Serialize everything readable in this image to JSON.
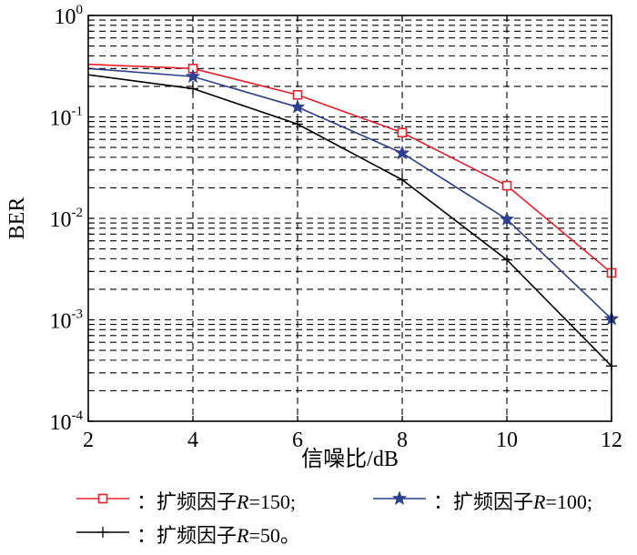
{
  "chart_data": {
    "type": "line",
    "title": "",
    "xlabel": "信噪比/dB",
    "ylabel": "BER",
    "x": [
      2,
      4,
      6,
      8,
      10,
      12
    ],
    "xlim": [
      2,
      12
    ],
    "ylim": [
      0.0001,
      1
    ],
    "yscale": "log",
    "grid": true,
    "xticks": [
      2,
      4,
      6,
      8,
      10,
      12
    ],
    "yticks": [
      {
        "base": "10",
        "exp": "0",
        "value": 1
      },
      {
        "base": "10",
        "exp": "-1",
        "value": 0.1
      },
      {
        "base": "10",
        "exp": "-2",
        "value": 0.01
      },
      {
        "base": "10",
        "exp": "-3",
        "value": 0.001
      },
      {
        "base": "10",
        "exp": "-4",
        "value": 0.0001
      }
    ],
    "legend_position": "bottom",
    "series": [
      {
        "prefix": "：扩频因子",
        "var": "R",
        "suffix": "=150;",
        "marker": "square",
        "color": "#e8202a",
        "values": [
          0.33,
          0.3,
          0.165,
          0.07,
          0.021,
          0.0029
        ],
        "marker_x": [
          4,
          6,
          8,
          10,
          12
        ]
      },
      {
        "prefix": "：扩频因子",
        "var": "R",
        "suffix": "=100;",
        "marker": "star",
        "color": "#2e3f8f",
        "values": [
          0.3,
          0.25,
          0.125,
          0.044,
          0.0098,
          0.00102
        ],
        "marker_x": [
          4,
          6,
          8,
          10,
          12
        ]
      },
      {
        "prefix": "：扩频因子",
        "var": "R",
        "suffix": "=50。",
        "marker": "plus",
        "color": "#000000",
        "values": [
          0.26,
          0.19,
          0.085,
          0.024,
          0.0039,
          0.00035
        ],
        "marker_x": [
          4,
          6,
          8,
          10,
          12
        ]
      }
    ]
  }
}
